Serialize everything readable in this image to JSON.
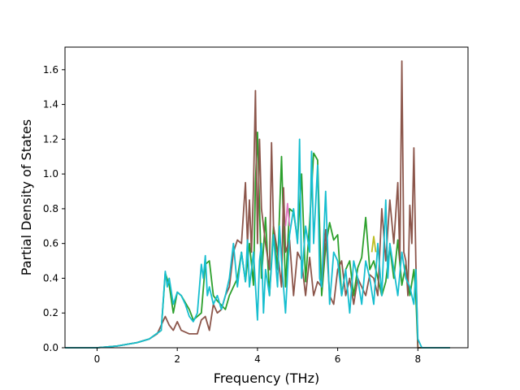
{
  "chart_data": {
    "type": "line",
    "title": "",
    "xlabel": "Frequency (THz)",
    "ylabel": "Partial Density of States",
    "xlim": [
      -0.8,
      9.25
    ],
    "ylim": [
      0.0,
      1.73
    ],
    "xticks": [
      0,
      2,
      4,
      6,
      8
    ],
    "yticks": [
      0.0,
      0.2,
      0.4,
      0.6,
      0.8,
      1.0,
      1.2,
      1.4,
      1.6
    ],
    "xtick_labels": [
      "0",
      "2",
      "4",
      "6",
      "8"
    ],
    "ytick_labels": [
      "0.0",
      "0.2",
      "0.4",
      "0.6",
      "0.8",
      "1.0",
      "1.2",
      "1.4",
      "1.6"
    ],
    "grid": false,
    "legend": "none",
    "series": [
      {
        "color": "#2ca02c",
        "x": [
          -0.8,
          0.0,
          0.5,
          1.0,
          1.3,
          1.6,
          1.7,
          1.8,
          1.9,
          2.0,
          2.1,
          2.3,
          2.4,
          2.6,
          2.7,
          2.8,
          2.9,
          3.0,
          3.2,
          3.3,
          3.5,
          3.6,
          3.7,
          3.8,
          3.9,
          3.95,
          4.0,
          4.1,
          4.2,
          4.3,
          4.4,
          4.5,
          4.6,
          4.65,
          4.7,
          4.8,
          4.9,
          5.0,
          5.1,
          5.2,
          5.3,
          5.4,
          5.5,
          5.6,
          5.7,
          5.8,
          5.9,
          6.0,
          6.1,
          6.2,
          6.3,
          6.4,
          6.5,
          6.6,
          6.7,
          6.8,
          6.9,
          7.0,
          7.1,
          7.2,
          7.3,
          7.4,
          7.5,
          7.6,
          7.7,
          7.8,
          7.9,
          7.95,
          8.0,
          8.1,
          8.8
        ],
        "y": [
          0.0,
          0.0,
          0.01,
          0.03,
          0.05,
          0.1,
          0.43,
          0.36,
          0.2,
          0.32,
          0.3,
          0.22,
          0.16,
          0.2,
          0.48,
          0.5,
          0.3,
          0.27,
          0.22,
          0.3,
          0.4,
          0.55,
          0.38,
          0.6,
          0.36,
          0.95,
          1.24,
          0.4,
          0.75,
          0.3,
          0.7,
          0.45,
          1.1,
          0.7,
          0.35,
          0.8,
          0.78,
          0.62,
          1.0,
          0.38,
          0.72,
          1.12,
          1.08,
          0.3,
          0.58,
          0.72,
          0.62,
          0.65,
          0.3,
          0.45,
          0.5,
          0.3,
          0.46,
          0.52,
          0.75,
          0.45,
          0.5,
          0.4,
          0.3,
          0.38,
          0.58,
          0.4,
          0.62,
          0.36,
          0.48,
          0.3,
          0.45,
          0.3,
          0.0,
          0.0,
          0.0
        ]
      },
      {
        "color": "#8c564b",
        "x": [
          -0.8,
          0.0,
          0.5,
          1.0,
          1.3,
          1.5,
          1.7,
          1.8,
          1.9,
          2.0,
          2.1,
          2.3,
          2.5,
          2.6,
          2.7,
          2.8,
          2.9,
          3.0,
          3.1,
          3.2,
          3.3,
          3.4,
          3.5,
          3.6,
          3.7,
          3.75,
          3.8,
          3.85,
          3.9,
          3.95,
          4.0,
          4.05,
          4.1,
          4.2,
          4.3,
          4.35,
          4.4,
          4.5,
          4.6,
          4.65,
          4.7,
          4.8,
          4.9,
          5.0,
          5.1,
          5.2,
          5.3,
          5.4,
          5.5,
          5.6,
          5.7,
          5.8,
          5.9,
          6.0,
          6.1,
          6.2,
          6.3,
          6.4,
          6.5,
          6.6,
          6.7,
          6.8,
          6.9,
          7.0,
          7.1,
          7.2,
          7.3,
          7.4,
          7.5,
          7.55,
          7.6,
          7.65,
          7.7,
          7.75,
          7.8,
          7.85,
          7.9,
          7.95,
          8.0,
          8.1,
          8.8
        ],
        "y": [
          0.0,
          0.0,
          0.01,
          0.03,
          0.05,
          0.08,
          0.18,
          0.13,
          0.1,
          0.15,
          0.1,
          0.08,
          0.08,
          0.16,
          0.18,
          0.1,
          0.25,
          0.2,
          0.22,
          0.3,
          0.35,
          0.55,
          0.62,
          0.6,
          0.95,
          0.6,
          0.85,
          0.55,
          0.92,
          1.48,
          0.6,
          1.2,
          0.8,
          0.6,
          0.45,
          1.18,
          0.7,
          0.55,
          0.35,
          0.92,
          0.55,
          0.62,
          0.3,
          0.55,
          0.5,
          0.3,
          0.52,
          0.3,
          0.38,
          0.35,
          0.68,
          0.3,
          0.25,
          0.45,
          0.5,
          0.3,
          0.4,
          0.25,
          0.4,
          0.35,
          0.3,
          0.42,
          0.4,
          0.3,
          0.8,
          0.5,
          0.85,
          0.6,
          0.95,
          0.5,
          1.65,
          0.55,
          0.5,
          0.3,
          0.82,
          0.6,
          1.15,
          0.5,
          0.0,
          0.0,
          0.0
        ]
      },
      {
        "color": "#e377c2",
        "x": [
          4.7,
          4.75,
          4.8
        ],
        "y": [
          0.7,
          0.83,
          0.7
        ]
      },
      {
        "color": "#bcbd22",
        "x": [
          6.85,
          6.9,
          6.95
        ],
        "y": [
          0.55,
          0.64,
          0.55
        ]
      },
      {
        "color": "#17becf",
        "x": [
          -0.8,
          0.0,
          0.5,
          1.0,
          1.3,
          1.6,
          1.7,
          1.75,
          1.8,
          1.9,
          2.0,
          2.1,
          2.2,
          2.3,
          2.4,
          2.5,
          2.6,
          2.65,
          2.7,
          2.75,
          2.8,
          2.9,
          3.0,
          3.1,
          3.2,
          3.3,
          3.4,
          3.5,
          3.6,
          3.7,
          3.75,
          3.8,
          3.9,
          4.0,
          4.05,
          4.1,
          4.15,
          4.2,
          4.3,
          4.4,
          4.5,
          4.55,
          4.6,
          4.7,
          4.8,
          4.9,
          5.0,
          5.05,
          5.1,
          5.2,
          5.3,
          5.35,
          5.4,
          5.5,
          5.55,
          5.6,
          5.7,
          5.8,
          5.9,
          6.0,
          6.1,
          6.2,
          6.3,
          6.4,
          6.5,
          6.6,
          6.7,
          6.8,
          6.9,
          7.0,
          7.1,
          7.2,
          7.25,
          7.3,
          7.4,
          7.5,
          7.6,
          7.7,
          7.8,
          7.9,
          7.95,
          8.0,
          8.1,
          8.8
        ],
        "y": [
          0.0,
          0.0,
          0.01,
          0.03,
          0.05,
          0.1,
          0.44,
          0.35,
          0.4,
          0.25,
          0.32,
          0.3,
          0.25,
          0.18,
          0.15,
          0.2,
          0.48,
          0.4,
          0.53,
          0.3,
          0.35,
          0.25,
          0.3,
          0.22,
          0.3,
          0.4,
          0.6,
          0.35,
          0.55,
          0.38,
          0.62,
          0.35,
          0.55,
          0.16,
          0.5,
          0.6,
          0.2,
          0.45,
          0.3,
          0.65,
          0.35,
          0.7,
          0.5,
          0.2,
          0.65,
          0.8,
          0.6,
          1.2,
          0.4,
          0.7,
          0.55,
          1.13,
          0.6,
          1.05,
          0.4,
          0.35,
          0.9,
          0.25,
          0.55,
          0.5,
          0.3,
          0.45,
          0.2,
          0.5,
          0.4,
          0.25,
          0.5,
          0.4,
          0.25,
          0.6,
          0.3,
          0.85,
          0.4,
          0.6,
          0.45,
          0.3,
          0.55,
          0.4,
          0.35,
          0.25,
          0.45,
          0.05,
          0.0,
          0.0
        ]
      }
    ]
  }
}
